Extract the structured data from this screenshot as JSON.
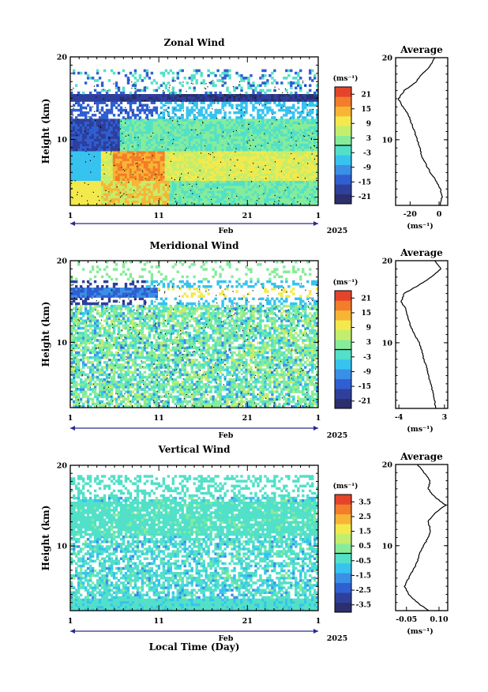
{
  "colors": {
    "colorbar": [
      "#2b2f6e",
      "#2f3f9c",
      "#2f5fd1",
      "#3a8fe6",
      "#36c3ef",
      "#52e0c8",
      "#86ec9a",
      "#c3ee6d",
      "#f3e94c",
      "#f8b534",
      "#f37d2a",
      "#e5442a"
    ],
    "background": "#ffffff",
    "axis": "#000000"
  },
  "xlabel": "Local Time (Day)",
  "chart_data": [
    {
      "type": "heatmap",
      "title": "Zonal Wind",
      "ylabel": "Height (km)",
      "yticks": [
        "10",
        "20"
      ],
      "ylim": [
        2,
        20
      ],
      "xticks": [
        "1",
        "11",
        "21",
        "1"
      ],
      "month": "Feb",
      "year": "2025",
      "colorbar": {
        "unit": "(ms⁻¹)",
        "ticks": [
          "21",
          "15",
          "9",
          "3",
          "-3",
          "-9",
          "-15",
          "-21"
        ],
        "range": [
          -24,
          24
        ]
      },
      "profile": {
        "title": "Average",
        "xticks": [
          "-20",
          "0"
        ],
        "xlabel": "(ms⁻¹)",
        "xlim": [
          -30,
          6
        ],
        "yticks": [
          "10",
          "20"
        ],
        "points": [
          [
            1,
            2
          ],
          [
            2,
            3
          ],
          [
            1,
            4
          ],
          [
            -2,
            5
          ],
          [
            -6,
            6
          ],
          [
            -9,
            7
          ],
          [
            -12,
            8
          ],
          [
            -13,
            9
          ],
          [
            -15,
            10
          ],
          [
            -17,
            11
          ],
          [
            -19,
            12
          ],
          [
            -21,
            13
          ],
          [
            -25,
            14
          ],
          [
            -28,
            15
          ],
          [
            -24,
            16
          ],
          [
            -16,
            17
          ],
          [
            -12,
            18
          ],
          [
            -6,
            19
          ],
          [
            -3,
            20
          ]
        ]
      }
    },
    {
      "type": "heatmap",
      "title": "Meridional Wind",
      "ylabel": "Height (km)",
      "yticks": [
        "10",
        "20"
      ],
      "ylim": [
        2,
        20
      ],
      "xticks": [
        "1",
        "11",
        "21",
        "1"
      ],
      "month": "Feb",
      "year": "2025",
      "colorbar": {
        "unit": "(ms⁻¹)",
        "ticks": [
          "21",
          "15",
          "9",
          "3",
          "-3",
          "-9",
          "-15",
          "-21"
        ],
        "range": [
          -24,
          24
        ]
      },
      "profile": {
        "title": "Average",
        "xticks": [
          "-4",
          "3"
        ],
        "xlabel": "(ms⁻¹)",
        "xlim": [
          -4.5,
          3.5
        ],
        "yticks": [
          "10",
          "20"
        ],
        "points": [
          [
            1.6,
            2
          ],
          [
            1.5,
            3
          ],
          [
            1.2,
            4
          ],
          [
            0.9,
            5
          ],
          [
            0.5,
            6
          ],
          [
            0.3,
            7
          ],
          [
            -0.2,
            8
          ],
          [
            -0.5,
            9
          ],
          [
            -0.8,
            10
          ],
          [
            -1.6,
            11
          ],
          [
            -2.2,
            12
          ],
          [
            -2.6,
            13
          ],
          [
            -2.9,
            14
          ],
          [
            -3.6,
            15
          ],
          [
            -3.2,
            16
          ],
          [
            -1.0,
            17
          ],
          [
            1.0,
            18
          ],
          [
            2.5,
            19
          ],
          [
            1.5,
            20
          ]
        ]
      }
    },
    {
      "type": "heatmap",
      "title": "Vertical Wind",
      "ylabel": "Height (km)",
      "yticks": [
        "10",
        "20"
      ],
      "ylim": [
        2,
        20
      ],
      "xticks": [
        "1",
        "11",
        "21",
        "1"
      ],
      "month": "Feb",
      "year": "2025",
      "colorbar": {
        "unit": "(ms⁻¹)",
        "ticks": [
          "3.5",
          "2.5",
          "1.5",
          "0.5",
          "-0.5",
          "-1.5",
          "-2.5",
          "-3.5"
        ],
        "range": [
          -4,
          4
        ]
      },
      "profile": {
        "title": "Average",
        "xticks": [
          "-0.05",
          "0.10"
        ],
        "xlabel": "(ms⁻¹)",
        "xlim": [
          -0.1,
          0.14
        ],
        "yticks": [
          "10",
          "20"
        ],
        "points": [
          [
            0.05,
            2
          ],
          [
            0.0,
            3
          ],
          [
            -0.04,
            4
          ],
          [
            -0.06,
            5
          ],
          [
            -0.04,
            6
          ],
          [
            -0.02,
            7
          ],
          [
            0.0,
            8
          ],
          [
            0.01,
            9
          ],
          [
            0.03,
            10
          ],
          [
            0.05,
            11
          ],
          [
            0.06,
            12
          ],
          [
            0.05,
            13
          ],
          [
            0.08,
            14
          ],
          [
            0.13,
            15
          ],
          [
            0.08,
            16
          ],
          [
            0.05,
            17
          ],
          [
            0.06,
            18
          ],
          [
            0.03,
            19
          ],
          [
            0.0,
            20
          ]
        ]
      }
    }
  ]
}
